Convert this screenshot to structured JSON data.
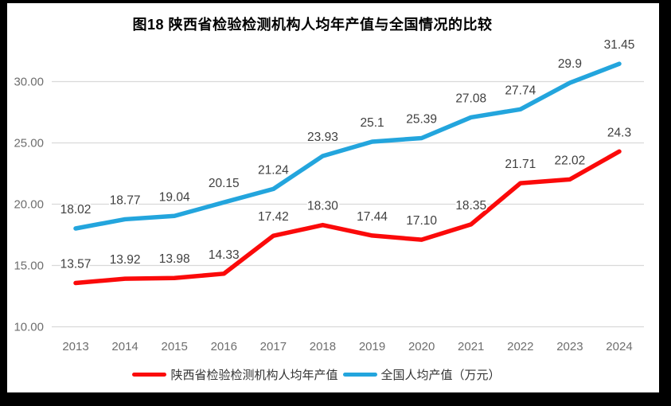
{
  "chart_data": {
    "type": "line",
    "title": "图18 陕西省检验检测机构人均年产值与全国情况的比较",
    "categories": [
      "2013",
      "2014",
      "2015",
      "2016",
      "2017",
      "2018",
      "2019",
      "2020",
      "2021",
      "2022",
      "2023",
      "2024"
    ],
    "series": [
      {
        "name": "陕西省检验检测机构人均年产值",
        "color": "#fb0a0a",
        "values": [
          13.57,
          13.92,
          13.98,
          14.33,
          17.42,
          18.3,
          17.44,
          17.1,
          18.35,
          21.71,
          22.02,
          24.3
        ],
        "labels": [
          "13.57",
          "13.92",
          "13.98",
          "14.33",
          "17.42",
          "18.30",
          "17.44",
          "17.10",
          "18.35",
          "21.71",
          "22.02",
          "24.3"
        ]
      },
      {
        "name": "全国人均产值（万元）",
        "color": "#23a5dd",
        "values": [
          18.02,
          18.77,
          19.04,
          20.15,
          21.24,
          23.93,
          25.1,
          25.39,
          27.08,
          27.74,
          29.9,
          31.45
        ],
        "labels": [
          "18.02",
          "18.77",
          "19.04",
          "20.15",
          "21.24",
          "23.93",
          "25.1",
          "25.39",
          "27.08",
          "27.74",
          "29.9",
          "31.45"
        ]
      }
    ],
    "y_axis": {
      "min": 10,
      "max": 30,
      "ticks": [
        10,
        15,
        20,
        25,
        30
      ],
      "tick_labels": [
        "10.00",
        "15.00",
        "20.00",
        "25.00",
        "30.00"
      ]
    },
    "grid": true,
    "legend_position": "bottom",
    "colors": {
      "gridline": "#d9d9d9",
      "axis_text": "#6e6e6e",
      "data_label": "#404040",
      "background": "#ffffff",
      "frame_border": "#000000"
    }
  }
}
